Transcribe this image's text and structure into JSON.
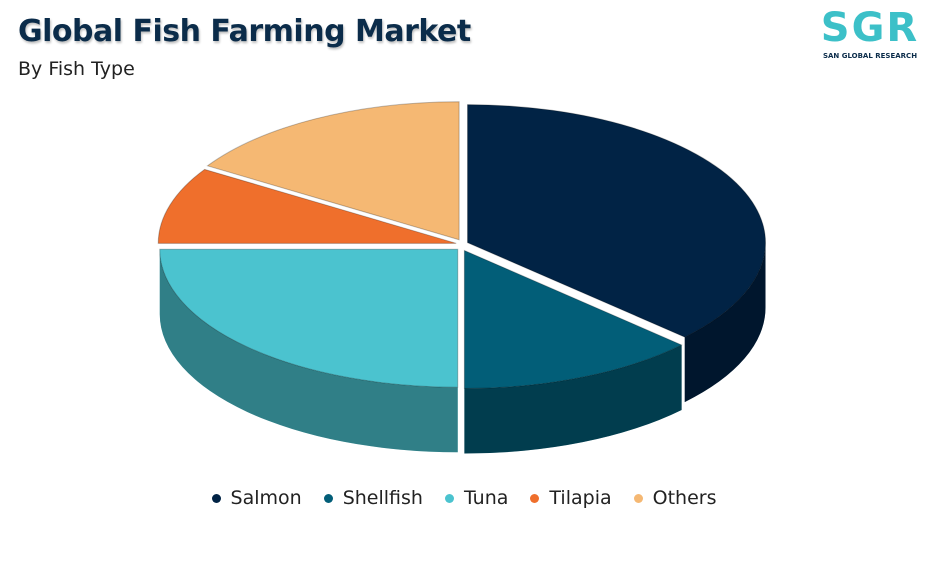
{
  "chart_data": {
    "type": "pie",
    "title": "Global Fish Farming Market",
    "subtitle": "By Fish Type",
    "categories": [
      "Salmon",
      "Shellfish",
      "Tuna",
      "Tilapia",
      "Others"
    ],
    "values": [
      37,
      13,
      25,
      9,
      16
    ],
    "colors": [
      "#012345",
      "#025e78",
      "#4bc3cf",
      "#ef6f2c",
      "#f5b873"
    ],
    "legend": "bottom"
  },
  "logo": {
    "text": "SGR",
    "tagline": "SAN GLOBAL RESEARCH"
  }
}
